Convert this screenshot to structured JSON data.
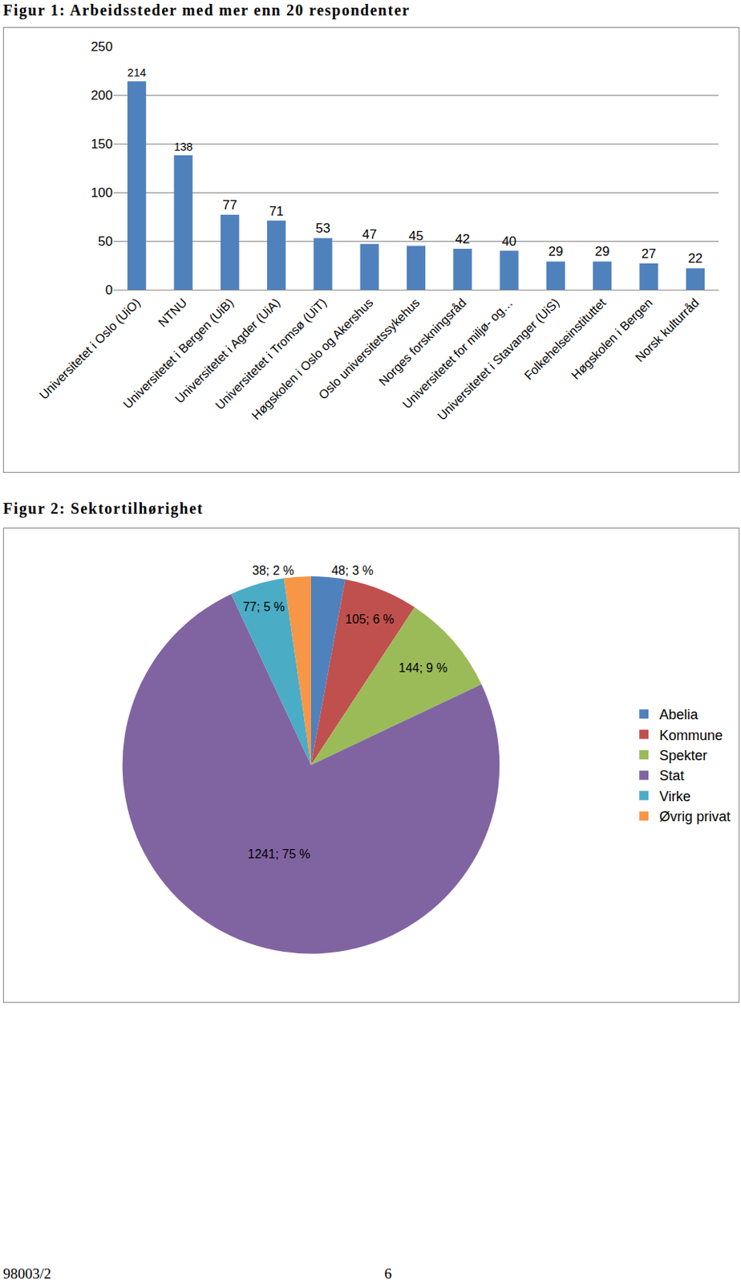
{
  "chart_data": [
    {
      "type": "bar",
      "title": "Figur 1: Arbeidssteder med mer enn 20 respondenter",
      "categories": [
        "Universitetet i Oslo (UiO)",
        "NTNU",
        "Universitetet i Bergen (UiB)",
        "Universitetet i Agder (UiA)",
        "Universitetet i Tromsø (UiT)",
        "Høgskolen i Oslo og Akershus",
        "Oslo universitetssykehus",
        "Norges forskningsråd",
        "Universitetet for miljø- og…",
        "Universitetet i Stavanger (UiS)",
        "Folkehelseinstituttet",
        "Høgskolen i Bergen",
        "Norsk kulturråd"
      ],
      "values": [
        214,
        138,
        77,
        71,
        53,
        47,
        45,
        42,
        40,
        29,
        29,
        27,
        22
      ],
      "color": "#4f81bd",
      "ylim": [
        0,
        250
      ],
      "yticks": [
        0,
        50,
        100,
        150,
        200,
        250
      ],
      "grid": true,
      "data_labels": true
    },
    {
      "type": "pie",
      "title": "Figur 2: Sektortilhørighet",
      "categories": [
        "Abelia",
        "Kommune",
        "Spekter",
        "Stat",
        "Virke",
        "Øvrig privat"
      ],
      "values": [
        48,
        105,
        144,
        1241,
        77,
        38
      ],
      "value_labels": [
        "48; 3 %",
        "105; 6 %",
        "144; 9 %",
        "1241; 75 %",
        "77; 5 %",
        "38; 2 %"
      ],
      "colors": [
        "#4f81bd",
        "#c0504d",
        "#9bbb59",
        "#8064a2",
        "#4bacc6",
        "#f79646"
      ],
      "legend": "right",
      "data_labels": true
    }
  ],
  "footer": {
    "left": "98003/2",
    "page": "6"
  }
}
